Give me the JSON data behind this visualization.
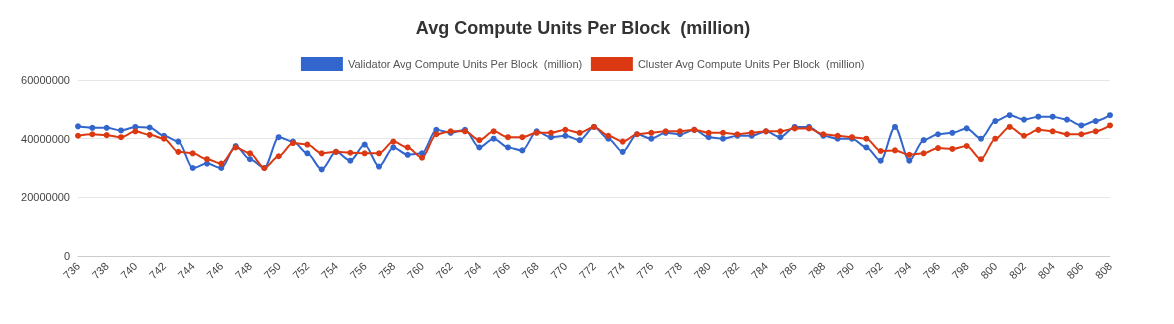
{
  "chart_data": {
    "type": "line",
    "title": "Avg Compute Units Per Block  (million)",
    "x": [
      736,
      737,
      738,
      739,
      740,
      741,
      742,
      743,
      744,
      745,
      746,
      747,
      748,
      749,
      750,
      751,
      752,
      753,
      754,
      755,
      756,
      757,
      758,
      759,
      760,
      761,
      762,
      763,
      764,
      765,
      766,
      767,
      768,
      769,
      770,
      771,
      772,
      773,
      774,
      775,
      776,
      777,
      778,
      779,
      780,
      781,
      782,
      783,
      784,
      785,
      786,
      787,
      788,
      789,
      790,
      791,
      792,
      793,
      794,
      795,
      796,
      797,
      798,
      799,
      800,
      801,
      802,
      803,
      804,
      805,
      806,
      807,
      808
    ],
    "series": [
      {
        "name": "Validator Avg Compute Units Per Block  (million)",
        "color": "#3366cc",
        "values": [
          44200000,
          43700000,
          43700000,
          42800000,
          44000000,
          43800000,
          41000000,
          39000000,
          30000000,
          31500000,
          30000000,
          37500000,
          33000000,
          30000000,
          40500000,
          39000000,
          35000000,
          29500000,
          35500000,
          32500000,
          38000000,
          30500000,
          37000000,
          34500000,
          35000000,
          43000000,
          42000000,
          43000000,
          37000000,
          40000000,
          37000000,
          36000000,
          42500000,
          40500000,
          41000000,
          39500000,
          44000000,
          40000000,
          35500000,
          41500000,
          40000000,
          42000000,
          41500000,
          43000000,
          40500000,
          40000000,
          41000000,
          41000000,
          42500000,
          40500000,
          44000000,
          44000000,
          41000000,
          40000000,
          40000000,
          37000000,
          32500000,
          44000000,
          32500000,
          39500000,
          41500000,
          42000000,
          43500000,
          40000000,
          46000000,
          48000000,
          46500000,
          47500000,
          47500000,
          46500000,
          44500000,
          46000000,
          48000000
        ]
      },
      {
        "name": "Cluster Avg Compute Units Per Block  (million)",
        "color": "#dc3912",
        "values": [
          41000000,
          41500000,
          41200000,
          40500000,
          42500000,
          41300000,
          40000000,
          35500000,
          35000000,
          33000000,
          31500000,
          37000000,
          35000000,
          30000000,
          34000000,
          38500000,
          38000000,
          35000000,
          35500000,
          35200000,
          35000000,
          35000000,
          39000000,
          37000000,
          33500000,
          41500000,
          42500000,
          42500000,
          39500000,
          42500000,
          40500000,
          40500000,
          42000000,
          42000000,
          43000000,
          42000000,
          44000000,
          41000000,
          39000000,
          41500000,
          42000000,
          42500000,
          42500000,
          43000000,
          42000000,
          42000000,
          41500000,
          42000000,
          42500000,
          42500000,
          43500000,
          43500000,
          41500000,
          41000000,
          40500000,
          40000000,
          35800000,
          36000000,
          34500000,
          35000000,
          36800000,
          36500000,
          37500000,
          33000000,
          40000000,
          44000000,
          41000000,
          43000000,
          42500000,
          41500000,
          41500000,
          42500000,
          44500000
        ]
      }
    ],
    "xlim": [
      736,
      808
    ],
    "xticks": [
      736,
      738,
      740,
      742,
      744,
      746,
      748,
      750,
      752,
      754,
      756,
      758,
      760,
      762,
      764,
      766,
      768,
      770,
      772,
      774,
      776,
      778,
      780,
      782,
      784,
      786,
      788,
      790,
      792,
      794,
      796,
      798,
      800,
      802,
      804,
      806,
      808
    ],
    "ylim": [
      0,
      60000000
    ],
    "yticks": [
      0,
      20000000,
      40000000,
      60000000
    ],
    "grid": "y",
    "legend": "top",
    "marker": "circle",
    "line_style": "solid"
  }
}
